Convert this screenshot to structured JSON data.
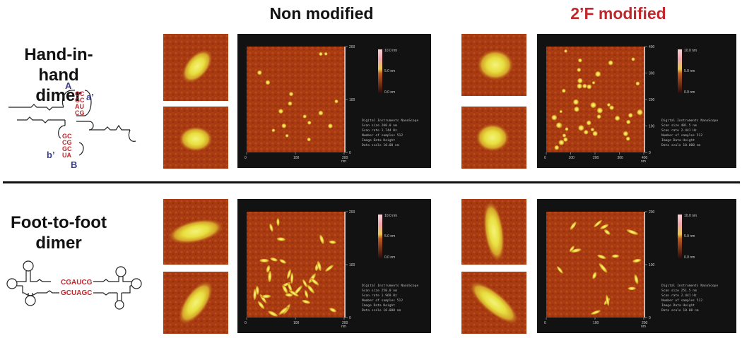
{
  "columns": {
    "non_modified": "Non modified",
    "f_modified": "2’F modified",
    "f_modified_color": "#c0282d"
  },
  "rows": {
    "hand_in_hand": {
      "line1": "Hand-in-hand",
      "line2": "dimer"
    },
    "foot_to_foot": {
      "line1": "Foot-to-foot",
      "line2": "dimer"
    }
  },
  "rna": {
    "hand": {
      "label_A": "A",
      "label_a_prime": "a’",
      "label_b_prime": "b’",
      "label_B": "B",
      "upper_pairs": [
        "GC",
        "GC",
        "AU",
        "CG"
      ],
      "lower_pairs": [
        "GC",
        "CG",
        "GC",
        "UA"
      ]
    },
    "foot": {
      "strand1": "CGAUCG",
      "strand2": "GCUAGC"
    }
  },
  "scans": {
    "nm_top": {
      "axis_max": "200",
      "ticks_x": [
        "0",
        "100",
        "200"
      ],
      "ticks_y": [
        "200",
        "100",
        "0"
      ],
      "unit": "nm",
      "scale_top": "10.0 nm",
      "scale_mid": "5.0 nm",
      "scale_bottom": "0.0 nm",
      "info": [
        "Digital Instruments NanoScope",
        "Scan size          200.0 nm",
        "Scan rate          1.744 Hz",
        "Number of samples  512",
        "Image Data         Height",
        "Data scale         10.00 nm"
      ]
    },
    "f_top": {
      "axis_max": "400",
      "ticks_x": [
        "0",
        "100",
        "200",
        "300",
        "400"
      ],
      "ticks_y": [
        "400",
        "300",
        "200",
        "100",
        "0"
      ],
      "unit": "nm",
      "scale_top": "10.0 nm",
      "scale_mid": "5.0 nm",
      "scale_bottom": "0.0 nm",
      "info": [
        "Digital Instruments NanoScope",
        "Scan size          401.5 nm",
        "Scan rate          2.441 Hz",
        "Number of samples  512",
        "Image Data         Height",
        "Data scale         10.000 nm"
      ]
    },
    "nm_bottom": {
      "axis_max": "200",
      "ticks_x": [
        "0",
        "100",
        "200"
      ],
      "ticks_y": [
        "200",
        "100",
        "0"
      ],
      "unit": "nm",
      "scale_top": "10.0 nm",
      "scale_mid": "5.0 nm",
      "scale_bottom": "0.0 nm",
      "info": [
        "Digital Instruments NanoScope",
        "Scan size          250.0 nm",
        "Scan rate          1.969 Hz",
        "Number of samples  512",
        "Image Data         Height",
        "Data scale         10.000 nm"
      ]
    },
    "f_bottom": {
      "axis_max": "200",
      "ticks_x": [
        "0",
        "100",
        "200"
      ],
      "ticks_y": [
        "200",
        "100",
        "0"
      ],
      "unit": "nm",
      "scale_top": "10.0 nm",
      "scale_mid": "5.0 nm",
      "scale_bottom": "0.0 nm",
      "info": [
        "Digital Instruments NanoScope",
        "Scan size          251.5 nm",
        "Scan rate          2.441 Hz",
        "Number of samples  512",
        "Image Data         Height",
        "Data scale         10.00 nm"
      ]
    }
  },
  "colors": {
    "afm_background": "#a83a12",
    "afm_feature": "#f2ea46",
    "rna_blue": "#3a3f8f",
    "rna_red": "#c0282d"
  }
}
